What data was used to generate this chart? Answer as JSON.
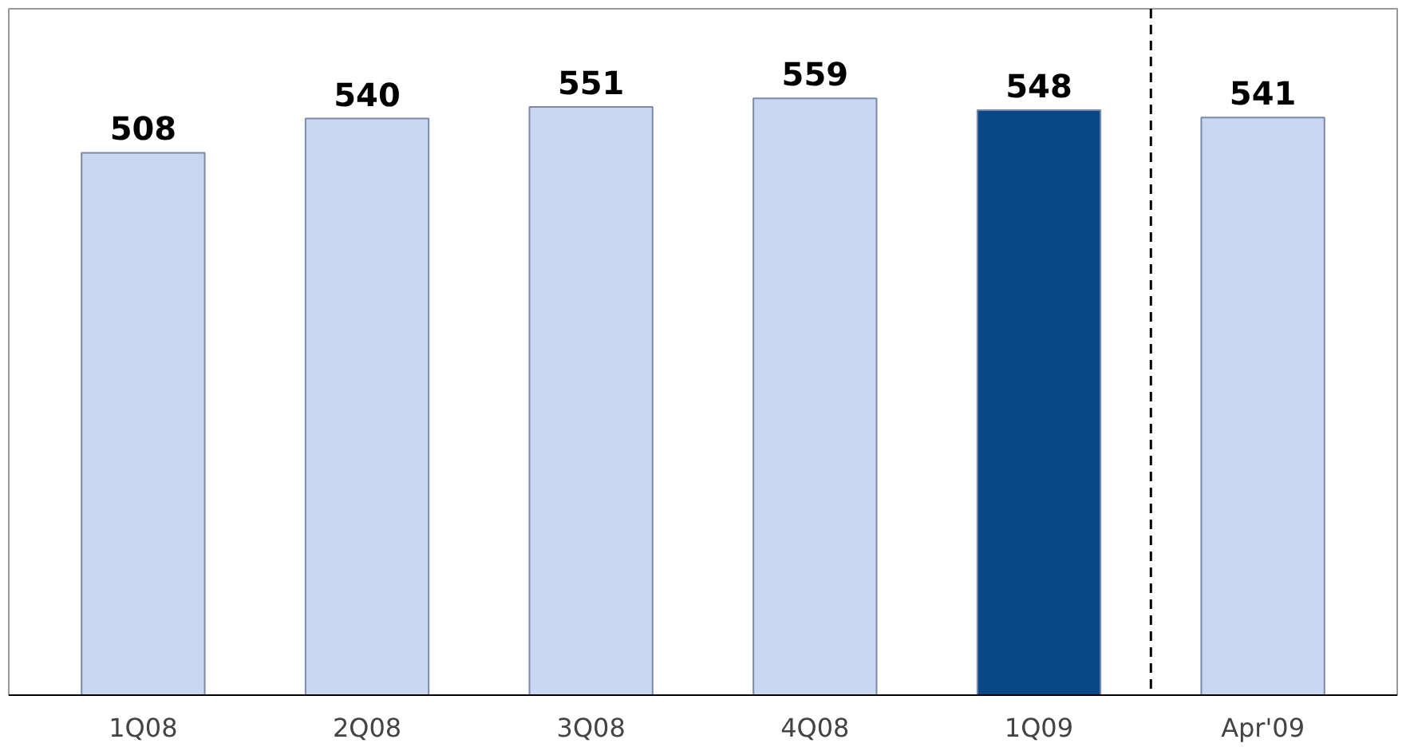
{
  "chart_data": {
    "type": "bar",
    "categories": [
      "1Q08",
      "2Q08",
      "3Q08",
      "4Q08",
      "1Q09",
      "Apr'09"
    ],
    "values": [
      508,
      540,
      551,
      559,
      548,
      541
    ],
    "colors": [
      "#c9d7f1",
      "#c9d7f1",
      "#c9d7f1",
      "#c9d7f1",
      "#0a4786",
      "#c9d7f1"
    ],
    "data_labels": true,
    "grid": false,
    "tick_labels": "x"
  }
}
